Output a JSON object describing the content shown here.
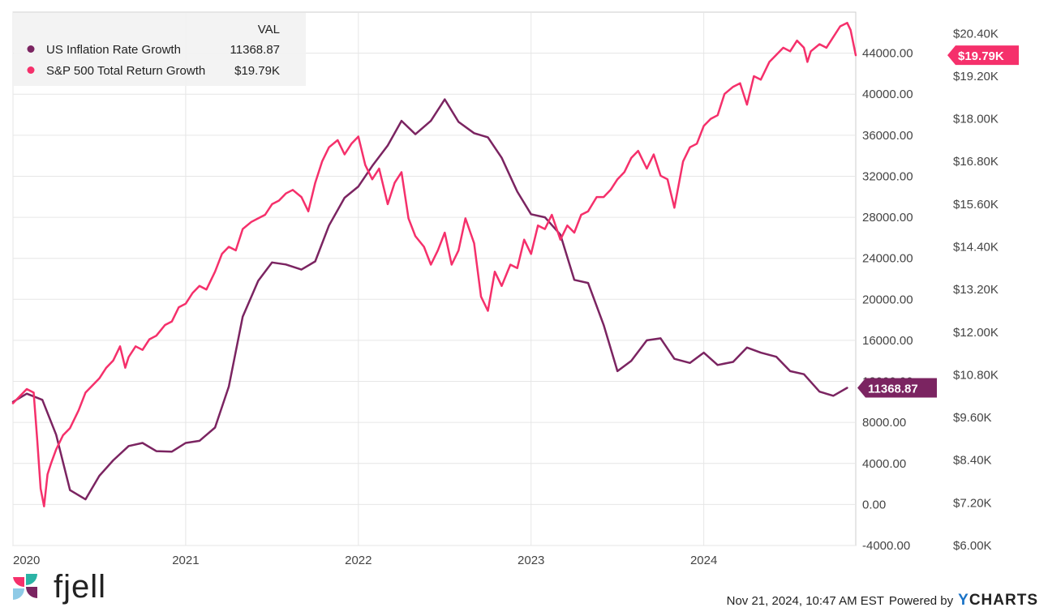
{
  "chart_data": {
    "type": "line",
    "title": "",
    "x_ticks": [
      "2020",
      "2021",
      "2022",
      "2023",
      "2024"
    ],
    "x_range": [
      2020.0,
      2024.88
    ],
    "left_axis": {
      "range": [
        -4000,
        48000
      ],
      "ticks": [
        44000,
        40000,
        36000,
        32000,
        28000,
        24000,
        20000,
        16000,
        12000,
        8000,
        4000,
        0,
        -4000
      ],
      "tick_labels": [
        "44000.00",
        "40000.00",
        "36000.00",
        "32000.00",
        "28000.00",
        "24000.00",
        "20000.00",
        "16000.00",
        "12000.00",
        "8000.00",
        "4000.00",
        "0.00",
        "-4000.00"
      ]
    },
    "right_axis": {
      "range": [
        6000,
        21000
      ],
      "ticks": [
        20400,
        19200,
        18000,
        16800,
        15600,
        14400,
        13200,
        12000,
        10800,
        9600,
        8400,
        7200,
        6000
      ],
      "tick_labels": [
        "$20.40K",
        "$19.20K",
        "$18.00K",
        "$16.80K",
        "$15.60K",
        "$14.40K",
        "$13.20K",
        "$12.00K",
        "$10.80K",
        "$9.60K",
        "$8.40K",
        "$7.20K",
        "$6.00K"
      ]
    },
    "legend": {
      "header": "VAL",
      "entries": [
        {
          "name": "US Inflation Rate Growth",
          "value": "11368.87",
          "color": "#7b2461"
        },
        {
          "name": "S&P 500 Total Return Growth",
          "value": "$19.79K",
          "color": "#f5306b"
        }
      ]
    },
    "series": [
      {
        "name": "US Inflation Rate Growth",
        "axis": "left",
        "color": "#7b2461",
        "end_label": "11368.87",
        "x": [
          2020.0,
          2020.08,
          2020.17,
          2020.25,
          2020.33,
          2020.42,
          2020.5,
          2020.58,
          2020.67,
          2020.75,
          2020.83,
          2020.92,
          2021.0,
          2021.08,
          2021.17,
          2021.25,
          2021.33,
          2021.42,
          2021.5,
          2021.58,
          2021.67,
          2021.75,
          2021.83,
          2021.92,
          2022.0,
          2022.08,
          2022.17,
          2022.25,
          2022.33,
          2022.42,
          2022.5,
          2022.58,
          2022.67,
          2022.75,
          2022.83,
          2022.92,
          2023.0,
          2023.08,
          2023.17,
          2023.25,
          2023.33,
          2023.42,
          2023.5,
          2023.58,
          2023.67,
          2023.75,
          2023.83,
          2023.92,
          2024.0,
          2024.08,
          2024.17,
          2024.25,
          2024.33,
          2024.42,
          2024.5,
          2024.58,
          2024.67,
          2024.75,
          2024.83
        ],
        "y": [
          10000,
          10800,
          10200,
          6800,
          1400,
          500,
          2800,
          4300,
          5700,
          6000,
          5200,
          5150,
          6000,
          6200,
          7500,
          11500,
          18300,
          21800,
          23600,
          23400,
          22900,
          23700,
          27200,
          29900,
          31000,
          33000,
          35000,
          37400,
          36100,
          37400,
          39500,
          37300,
          36200,
          35800,
          33800,
          30500,
          28300,
          28000,
          26300,
          21900,
          21600,
          17500,
          13000,
          14000,
          16000,
          16200,
          14200,
          13800,
          14800,
          13600,
          13900,
          15300,
          14800,
          14400,
          13000,
          12700,
          11000,
          10600,
          11368.87
        ]
      },
      {
        "name": "S&P 500 Total Return Growth",
        "axis": "right",
        "color": "#f5306b",
        "end_label": "$19.79K",
        "x": [
          2020.0,
          2020.04,
          2020.08,
          2020.12,
          2020.14,
          2020.16,
          2020.18,
          2020.2,
          2020.22,
          2020.25,
          2020.29,
          2020.33,
          2020.38,
          2020.42,
          2020.46,
          2020.5,
          2020.54,
          2020.58,
          2020.62,
          2020.65,
          2020.67,
          2020.71,
          2020.75,
          2020.79,
          2020.83,
          2020.88,
          2020.92,
          2020.96,
          2021.0,
          2021.04,
          2021.08,
          2021.12,
          2021.17,
          2021.21,
          2021.25,
          2021.29,
          2021.33,
          2021.38,
          2021.42,
          2021.46,
          2021.5,
          2021.54,
          2021.58,
          2021.62,
          2021.67,
          2021.71,
          2021.75,
          2021.79,
          2021.83,
          2021.88,
          2021.92,
          2021.96,
          2022.0,
          2022.04,
          2022.08,
          2022.12,
          2022.17,
          2022.21,
          2022.25,
          2022.29,
          2022.33,
          2022.38,
          2022.42,
          2022.46,
          2022.5,
          2022.54,
          2022.58,
          2022.62,
          2022.67,
          2022.71,
          2022.75,
          2022.79,
          2022.83,
          2022.88,
          2022.92,
          2022.96,
          2023.0,
          2023.04,
          2023.08,
          2023.12,
          2023.17,
          2023.21,
          2023.25,
          2023.29,
          2023.33,
          2023.38,
          2023.42,
          2023.46,
          2023.5,
          2023.54,
          2023.58,
          2023.62,
          2023.67,
          2023.71,
          2023.75,
          2023.79,
          2023.83,
          2023.88,
          2023.92,
          2023.96,
          2024.0,
          2024.04,
          2024.08,
          2024.12,
          2024.17,
          2024.21,
          2024.25,
          2024.29,
          2024.33,
          2024.38,
          2024.42,
          2024.46,
          2024.5,
          2024.54,
          2024.58,
          2024.6,
          2024.62,
          2024.67,
          2024.71,
          2024.75,
          2024.79,
          2024.83,
          2024.85,
          2024.88
        ],
        "y": [
          10000,
          10200,
          10400,
          10300,
          9000,
          7600,
          7100,
          8000,
          8300,
          8700,
          9100,
          9300,
          9800,
          10300,
          10500,
          10700,
          11000,
          11200,
          11600,
          11000,
          11300,
          11600,
          11500,
          11800,
          11900,
          12200,
          12300,
          12700,
          12800,
          13100,
          13300,
          13200,
          13700,
          14200,
          14400,
          14300,
          14900,
          15100,
          15200,
          15300,
          15600,
          15700,
          15900,
          16000,
          15800,
          15400,
          16200,
          16800,
          17200,
          17400,
          17000,
          17300,
          17500,
          16700,
          16300,
          16600,
          15600,
          16200,
          16500,
          15200,
          14700,
          14400,
          13900,
          14300,
          14800,
          13900,
          14300,
          15200,
          14500,
          13000,
          12600,
          13700,
          13300,
          13900,
          13800,
          14600,
          14200,
          15000,
          14900,
          15300,
          14600,
          15000,
          14800,
          15300,
          15400,
          15800,
          15800,
          16000,
          16300,
          16500,
          16900,
          17100,
          16600,
          17000,
          16400,
          16300,
          15500,
          16800,
          17200,
          17300,
          17800,
          18000,
          18100,
          18700,
          18900,
          19000,
          18400,
          19200,
          19100,
          19600,
          19800,
          20000,
          19900,
          20200,
          20000,
          19600,
          19900,
          20100,
          20000,
          20300,
          20600,
          20700,
          20500,
          19790
        ]
      }
    ]
  },
  "branding": {
    "logo_word": "fjell",
    "timestamp": "Nov 21, 2024, 10:47 AM EST",
    "powered_by": "Powered by",
    "brand_first": "Y",
    "brand_rest": "CHARTS"
  }
}
